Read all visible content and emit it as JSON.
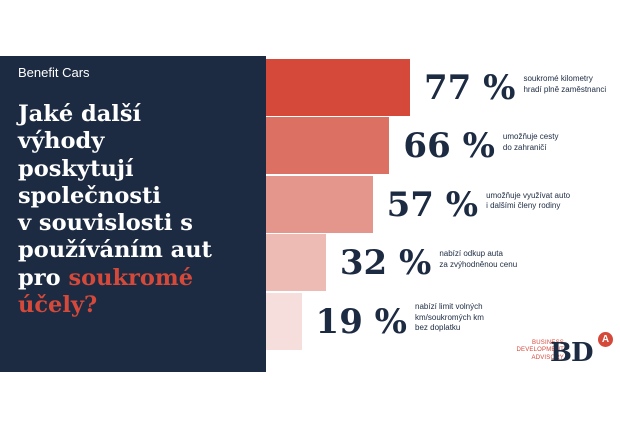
{
  "kicker": "Benefit Cars",
  "headline": {
    "lines": [
      "Jaké další",
      "výhody",
      "poskytují",
      "společnosti",
      "v souvislosti s",
      "používáním aut"
    ],
    "last_prefix": "pro ",
    "highlight_1": "soukromé",
    "highlight_2": "účely?"
  },
  "colors": {
    "panel": "#1c2b42",
    "accent": "#d4493a",
    "text_dark": "#1c2b42",
    "bars": [
      "#d4493a",
      "#dc7063",
      "#e5968c",
      "#edbbb4",
      "#f5dedb"
    ]
  },
  "chart_data": {
    "type": "bar",
    "orientation": "horizontal",
    "unit": "%",
    "categories": [
      "soukromé kilometry hradí plně zaměstnanci",
      "umožňuje cesty do zahraničí",
      "umožňuje využívat auto i dalšími členy rodiny",
      "nabízí odkup auta za zvýhodněnou cenu",
      "nabízí limit volných km/soukromých km bez doplatku"
    ],
    "values": [
      77,
      66,
      57,
      32,
      19
    ],
    "labels": [
      "77 %",
      "66 %",
      "57 %",
      "32 %",
      "19 %"
    ],
    "desc_lines": [
      [
        "soukromé kilometry",
        "hradí plně zaměstnanci"
      ],
      [
        "umožňuje cesty",
        "do zahraničí"
      ],
      [
        "umožňuje využívat auto",
        "i dalšími členy rodiny"
      ],
      [
        "nabízí odkup auta",
        "za zvýhodněnou cenu"
      ],
      [
        "nabízí limit volných",
        "km/soukromých km",
        "bez doplatku"
      ]
    ]
  },
  "logo": {
    "text_lines": [
      "BUSINESS",
      "DEVELOPMENT",
      "ADVISORY"
    ],
    "mark": "BD",
    "badge": "A"
  }
}
